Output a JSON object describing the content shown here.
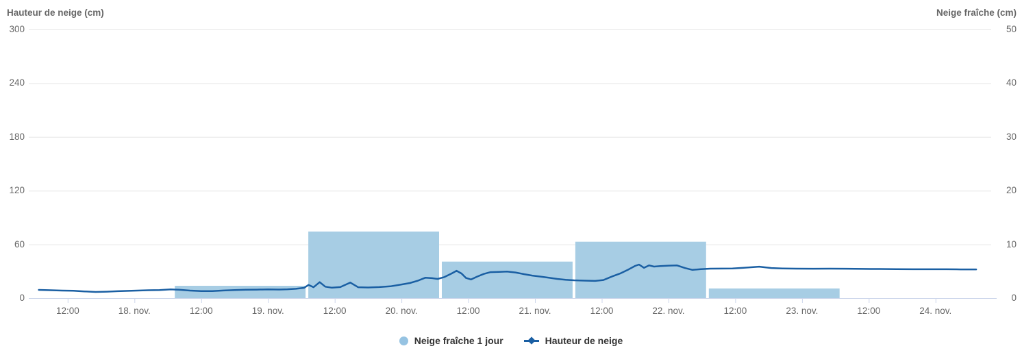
{
  "colors": {
    "bar_fill": "#a7cde4",
    "line_stroke": "#1a5fa3",
    "grid": "#e6e6e6",
    "axis_line": "#ccd6eb",
    "tick_label": "#666666",
    "axis_title": "#666666",
    "legend_text": "#333333",
    "legend_circle": "#96c3e2"
  },
  "chart_data": {
    "type": "mixed-bar-line",
    "x_axis": {
      "unit": "hours since 17. nov. 00:00",
      "range_hours": [
        5,
        178
      ],
      "labels": [
        {
          "text": "12:00",
          "t": 12
        },
        {
          "text": "18. nov.",
          "t": 24
        },
        {
          "text": "12:00",
          "t": 36
        },
        {
          "text": "19. nov.",
          "t": 48
        },
        {
          "text": "12:00",
          "t": 60
        },
        {
          "text": "20. nov.",
          "t": 72
        },
        {
          "text": "12:00",
          "t": 84
        },
        {
          "text": "21. nov.",
          "t": 96
        },
        {
          "text": "12:00",
          "t": 108
        },
        {
          "text": "22. nov.",
          "t": 120
        },
        {
          "text": "12:00",
          "t": 132
        },
        {
          "text": "23. nov.",
          "t": 144
        },
        {
          "text": "12:00",
          "t": 156
        },
        {
          "text": "24. nov.",
          "t": 168
        }
      ]
    },
    "left_axis": {
      "title": "Hauteur de neige (cm)",
      "ticks": [
        300,
        240,
        180,
        120,
        60,
        0
      ],
      "max": 300,
      "min": 0
    },
    "right_axis": {
      "title": "Neige fraîche (cm)",
      "ticks": [
        50,
        40,
        30,
        20,
        10,
        0
      ],
      "max": 50,
      "min": 0
    },
    "grid": "horizontal-only",
    "legend_position": "bottom-center",
    "series": [
      {
        "name": "Neige fraîche 1 jour",
        "type": "bar",
        "axis": "right",
        "color": "#a7cde4",
        "bars": [
          {
            "start": 31,
            "end": 55,
            "value": 2.3
          },
          {
            "start": 55,
            "end": 79,
            "value": 12.4
          },
          {
            "start": 79,
            "end": 103,
            "value": 6.8
          },
          {
            "start": 103,
            "end": 127,
            "value": 10.5
          },
          {
            "start": 127,
            "end": 151,
            "value": 1.8
          }
        ]
      },
      {
        "name": "Hauteur de neige",
        "type": "line",
        "axis": "left",
        "color": "#1a5fa3",
        "points": [
          [
            6.8,
            9.2
          ],
          [
            9,
            8.8
          ],
          [
            11,
            8.4
          ],
          [
            13,
            8.2
          ],
          [
            15,
            7.5
          ],
          [
            17,
            6.9
          ],
          [
            19,
            7.2
          ],
          [
            21,
            7.7
          ],
          [
            23,
            8.1
          ],
          [
            24.5,
            8.4
          ],
          [
            26.5,
            8.8
          ],
          [
            28.5,
            9.0
          ],
          [
            30.5,
            9.7
          ],
          [
            32,
            9.3
          ],
          [
            34,
            8.4
          ],
          [
            36,
            7.8
          ],
          [
            38,
            7.9
          ],
          [
            40,
            8.5
          ],
          [
            42,
            9.0
          ],
          [
            44,
            9.3
          ],
          [
            46,
            9.5
          ],
          [
            48,
            9.8
          ],
          [
            50,
            9.6
          ],
          [
            51.5,
            9.9
          ],
          [
            53,
            10.4
          ],
          [
            54.5,
            11.5
          ],
          [
            55.3,
            14.8
          ],
          [
            56.2,
            12.2
          ],
          [
            57.3,
            17.8
          ],
          [
            58.3,
            12.8
          ],
          [
            59.5,
            11.6
          ],
          [
            61,
            12.3
          ],
          [
            62.8,
            17.4
          ],
          [
            64.2,
            12.2
          ],
          [
            66,
            11.9
          ],
          [
            68,
            12.3
          ],
          [
            70,
            13.2
          ],
          [
            72,
            15.2
          ],
          [
            73.5,
            16.8
          ],
          [
            75,
            19.6
          ],
          [
            76.3,
            22.8
          ],
          [
            77.5,
            22.3
          ],
          [
            78.5,
            21.4
          ],
          [
            79.7,
            23.5
          ],
          [
            81,
            27.5
          ],
          [
            81.9,
            30.5
          ],
          [
            82.8,
            27.5
          ],
          [
            83.6,
            22.5
          ],
          [
            84.5,
            20.8
          ],
          [
            85.6,
            24.0
          ],
          [
            86.8,
            27.0
          ],
          [
            88,
            29.0
          ],
          [
            89.5,
            29.3
          ],
          [
            91,
            29.7
          ],
          [
            92.5,
            28.6
          ],
          [
            94,
            26.8
          ],
          [
            95.5,
            25.2
          ],
          [
            97,
            24.0
          ],
          [
            98.5,
            22.8
          ],
          [
            100,
            21.4
          ],
          [
            101.5,
            20.4
          ],
          [
            103,
            19.9
          ],
          [
            105,
            19.5
          ],
          [
            106.8,
            19.2
          ],
          [
            108.3,
            20.2
          ],
          [
            109.8,
            24.0
          ],
          [
            111.3,
            27.5
          ],
          [
            112.8,
            32.0
          ],
          [
            114,
            36.0
          ],
          [
            114.7,
            37.5
          ],
          [
            115.6,
            33.8
          ],
          [
            116.5,
            36.6
          ],
          [
            117.4,
            35.2
          ],
          [
            118.5,
            35.8
          ],
          [
            120,
            36.3
          ],
          [
            121.5,
            36.6
          ],
          [
            123,
            33.5
          ],
          [
            124.3,
            31.5
          ],
          [
            125.8,
            32.4
          ],
          [
            127.5,
            32.9
          ],
          [
            129.5,
            33.0
          ],
          [
            131.5,
            33.1
          ],
          [
            133.5,
            33.8
          ],
          [
            136.3,
            35.1
          ],
          [
            138.5,
            33.6
          ],
          [
            140.5,
            33.1
          ],
          [
            143,
            32.9
          ],
          [
            146,
            32.8
          ],
          [
            149,
            32.9
          ],
          [
            152,
            32.8
          ],
          [
            155,
            32.6
          ],
          [
            158,
            32.5
          ],
          [
            161,
            32.4
          ],
          [
            164,
            32.2
          ],
          [
            167,
            32.2
          ],
          [
            170,
            32.2
          ],
          [
            172.5,
            32.1
          ],
          [
            175.3,
            32.1
          ]
        ]
      }
    ]
  }
}
